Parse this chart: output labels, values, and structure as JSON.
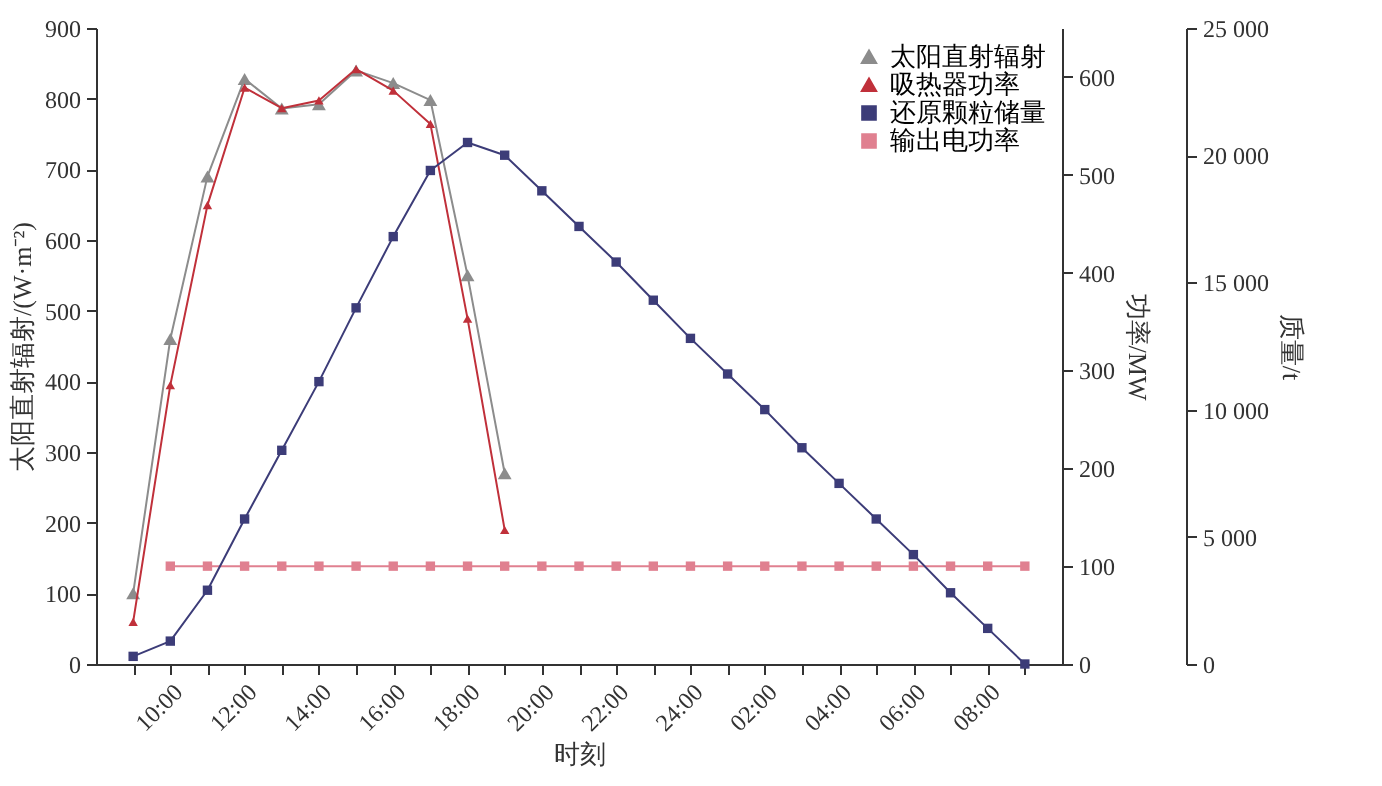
{
  "chart_data": {
    "type": "line",
    "xlabel": "时刻",
    "ylabel": "太阳直射辐射/(W·m⁻²)",
    "y2label": "功率/MW",
    "y3label": "质量/t",
    "categories": [
      null,
      "10:00",
      null,
      "12:00",
      null,
      "14:00",
      null,
      "16:00",
      null,
      "18:00",
      null,
      "20:00",
      null,
      "22:00",
      null,
      "24:00",
      null,
      "02:00",
      null,
      "04:00",
      null,
      "06:00",
      null,
      "08:00",
      null
    ],
    "ylim": [
      0,
      900
    ],
    "yticks": [
      0,
      100,
      200,
      300,
      400,
      500,
      600,
      700,
      800,
      900
    ],
    "y2lim": [
      0,
      650
    ],
    "y2ticks": [
      0,
      100,
      200,
      300,
      400,
      500,
      600
    ],
    "y3lim": [
      0,
      25000
    ],
    "y3ticks": [
      0,
      {
        "value": 5000,
        "label": "5 000"
      },
      {
        "value": 10000,
        "label": "10 000"
      },
      {
        "value": 15000,
        "label": "15 000"
      },
      {
        "value": 20000,
        "label": "20 000"
      },
      {
        "value": 25000,
        "label": "25 000"
      }
    ],
    "grid": false,
    "legend": "top right",
    "line_style": "solid",
    "series": [
      {
        "name": "太阳直射辐射",
        "color": "#8c8c8c",
        "marker": "triangle",
        "values": [
          100,
          460,
          690,
          828,
          786,
          792,
          840,
          822,
          798,
          550,
          270,
          null,
          null,
          null,
          null,
          null,
          null,
          null,
          null,
          null,
          null,
          null,
          null,
          null,
          null
        ]
      },
      {
        "name": "吸热器功率",
        "color": "#c0303a",
        "marker": "triangle",
        "axis": "y2",
        "values": [
          43,
          285,
          469,
          589,
          568,
          576,
          608,
          586,
          552,
          353,
          137,
          null,
          null,
          null,
          null,
          null,
          null,
          null,
          null,
          null,
          null,
          null,
          null,
          null,
          null
        ]
      },
      {
        "name": "还原颗粒储量",
        "color": "#3c3c78",
        "marker": "square",
        "axis": "y3",
        "values": [
          300,
          900,
          2900,
          5700,
          8400,
          11100,
          14000,
          16800,
          19400,
          20500,
          20000,
          18600,
          17200,
          15800,
          14300,
          12800,
          11400,
          10000,
          8500,
          7100,
          5700,
          4300,
          2800,
          1400,
          0
        ]
      },
      {
        "name": "输出电功率",
        "color": "#e08090",
        "marker": "square",
        "axis": "y2",
        "values": [
          null,
          100,
          100,
          100,
          100,
          100,
          100,
          100,
          100,
          100,
          100,
          100,
          100,
          100,
          100,
          100,
          100,
          100,
          100,
          100,
          100,
          100,
          100,
          100,
          100
        ]
      }
    ]
  }
}
